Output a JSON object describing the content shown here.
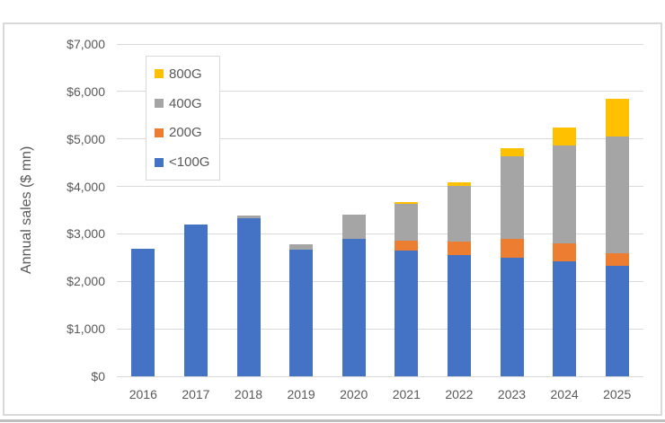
{
  "window": {
    "background_color": "#FFFFFF",
    "frame_border_color": "#D9D9D9",
    "bottom_edge_color": "#BDBDBD"
  },
  "chart_data": {
    "type": "bar",
    "stacked": true,
    "title": "",
    "xlabel": "",
    "ylabel": "Annual sales ($ mn)",
    "ylim": [
      0,
      7000
    ],
    "ytick_interval": 1000,
    "ytick_labels": [
      "$0",
      "$1,000",
      "$2,000",
      "$3,000",
      "$4,000",
      "$5,000",
      "$6,000",
      "$7,000"
    ],
    "grid": true,
    "gridline_color": "#D9D9D9",
    "text_color": "#595959",
    "categories": [
      "2016",
      "2017",
      "2018",
      "2019",
      "2020",
      "2021",
      "2022",
      "2023",
      "2024",
      "2025"
    ],
    "series": [
      {
        "name": "<100G",
        "color": "#4472C4",
        "values": [
          2680,
          3190,
          3330,
          2660,
          2900,
          2650,
          2550,
          2500,
          2430,
          2320
        ]
      },
      {
        "name": "200G",
        "color": "#ED7D31",
        "values": [
          0,
          0,
          0,
          0,
          0,
          210,
          290,
          400,
          370,
          280
        ]
      },
      {
        "name": "400G",
        "color": "#A5A5A5",
        "values": [
          0,
          0,
          50,
          120,
          500,
          770,
          1170,
          1730,
          2060,
          2450
        ]
      },
      {
        "name": "800G",
        "color": "#FFC000",
        "values": [
          0,
          0,
          0,
          0,
          0,
          40,
          70,
          170,
          380,
          790
        ]
      }
    ],
    "totals": [
      2680,
      3190,
      3380,
      2780,
      3400,
      3670,
      4080,
      4800,
      5240,
      5840
    ],
    "legend": {
      "position": "inside-top-left",
      "items_top_to_bottom": [
        "800G",
        "400G",
        "200G",
        "<100G"
      ]
    }
  }
}
